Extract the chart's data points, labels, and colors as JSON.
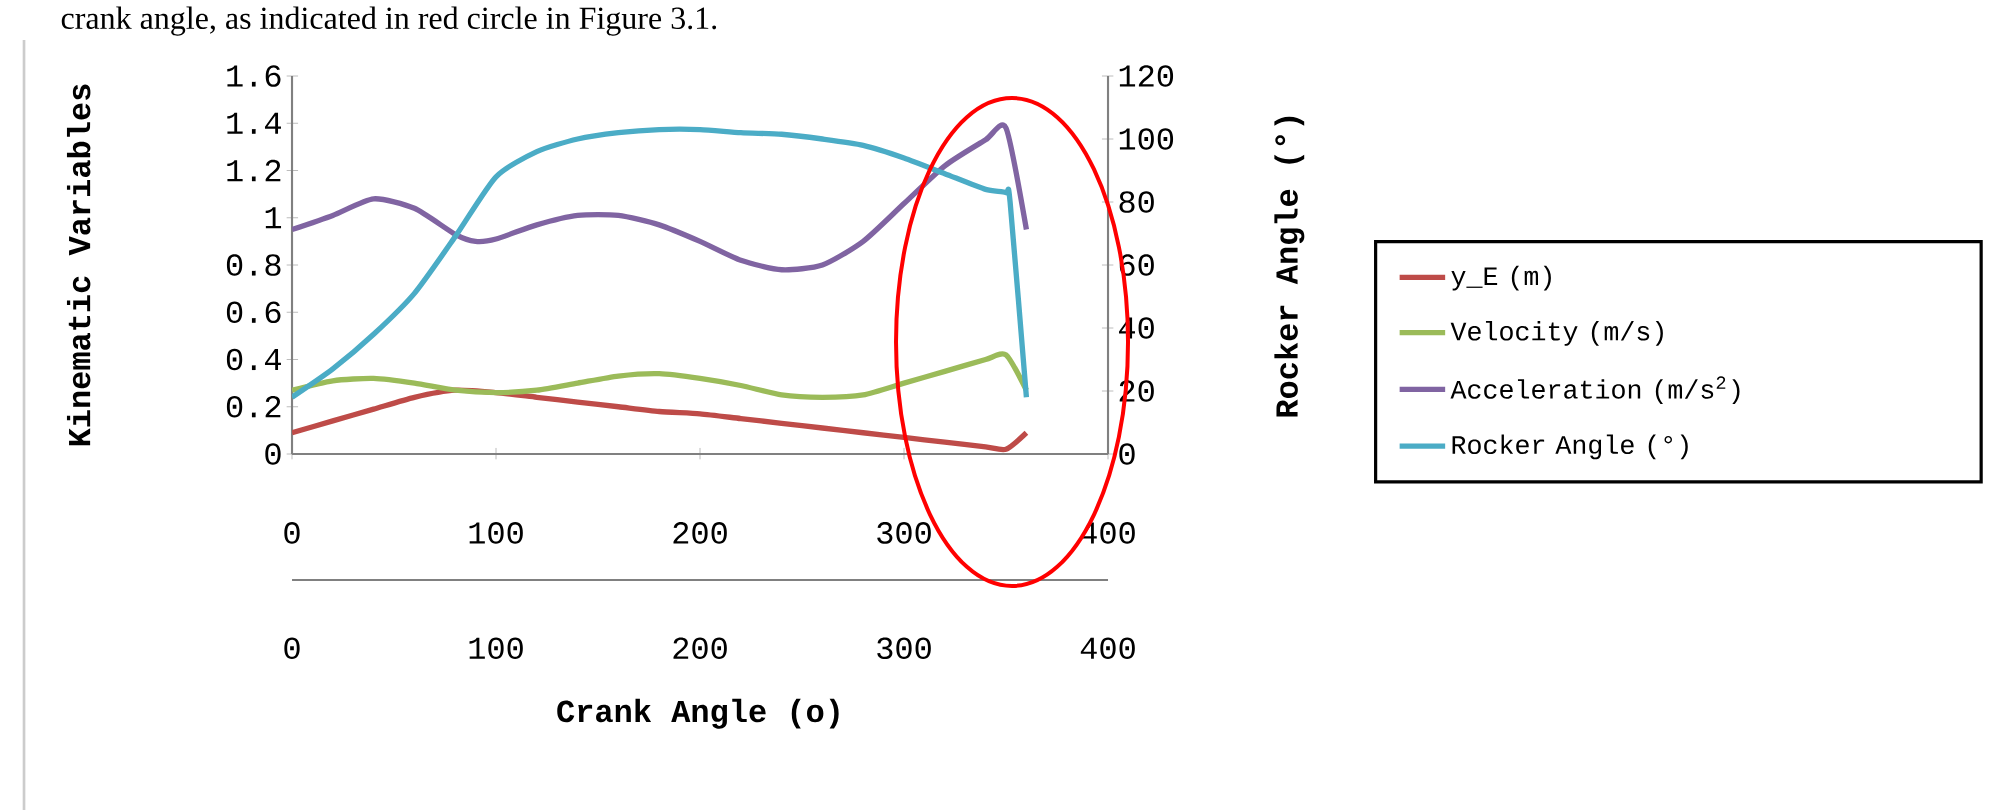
{
  "chart_data": {
    "type": "line",
    "xlabel": "Crank Angle (o)",
    "ylabel": "Kinematic Variables",
    "y2label": "Rocker Angle (°)",
    "annotations": [
      "crank angle, as indicated in red circle in Figure 3.1."
    ],
    "series": [
      {
        "name": "y_E (m)",
        "color": "#be4b48",
        "x": [
          0,
          20,
          40,
          60,
          80,
          100,
          120,
          140,
          160,
          180,
          200,
          220,
          240,
          260,
          280,
          300,
          320,
          340,
          350,
          360
        ],
        "values": [
          0.09,
          0.14,
          0.19,
          0.24,
          0.27,
          0.26,
          0.24,
          0.22,
          0.2,
          0.18,
          0.17,
          0.15,
          0.13,
          0.11,
          0.09,
          0.07,
          0.05,
          0.03,
          0.02,
          0.09
        ]
      },
      {
        "name": "Velocity (m/s)",
        "color": "#9bbb59",
        "x": [
          0,
          20,
          40,
          60,
          80,
          100,
          120,
          140,
          160,
          180,
          200,
          220,
          240,
          260,
          280,
          300,
          320,
          340,
          350,
          360
        ],
        "values": [
          0.27,
          0.31,
          0.32,
          0.3,
          0.27,
          0.26,
          0.27,
          0.3,
          0.33,
          0.34,
          0.32,
          0.29,
          0.25,
          0.24,
          0.25,
          0.3,
          0.35,
          0.4,
          0.42,
          0.27
        ]
      },
      {
        "name": "Acceleration (m/s$^{2}$)",
        "color": "#8064a2",
        "x": [
          0,
          20,
          40,
          60,
          80,
          90,
          100,
          120,
          140,
          160,
          180,
          200,
          220,
          240,
          260,
          280,
          300,
          320,
          340,
          350,
          360
        ],
        "values": [
          0.95,
          1.01,
          1.08,
          1.04,
          0.93,
          0.9,
          0.91,
          0.97,
          1.01,
          1.01,
          0.97,
          0.9,
          0.82,
          0.78,
          0.8,
          0.9,
          1.06,
          1.22,
          1.33,
          1.38,
          0.95
        ]
      },
      {
        "name": "Rocker Angle (°)",
        "color": "#4bacc6",
        "axis": "y2",
        "x": [
          0,
          20,
          40,
          60,
          80,
          100,
          120,
          140,
          160,
          180,
          200,
          220,
          240,
          260,
          280,
          300,
          320,
          340,
          350,
          352,
          360
        ],
        "values": [
          18,
          27,
          38,
          51,
          69,
          88,
          96,
          100,
          102,
          103,
          103,
          102,
          101.5,
          100,
          98,
          94,
          89,
          84,
          83,
          80,
          18
        ]
      }
    ],
    "xlim": [
      0,
      400
    ],
    "xticks": [
      0,
      100,
      200,
      300,
      400
    ],
    "x2lim": [
      0,
      400
    ],
    "x2ticks": [
      0,
      100,
      200,
      300,
      400
    ],
    "ylim": [
      0,
      1.6
    ],
    "yticks": [
      0,
      0.2,
      0.4,
      0.6,
      0.8,
      1,
      1.2,
      1.4,
      1.6
    ],
    "y2lim": [
      0,
      120
    ],
    "y2ticks": [
      0,
      20,
      40,
      60,
      80,
      100,
      120
    ],
    "grid": false,
    "legend": "right",
    "marker": "none",
    "line_style": "solid"
  }
}
